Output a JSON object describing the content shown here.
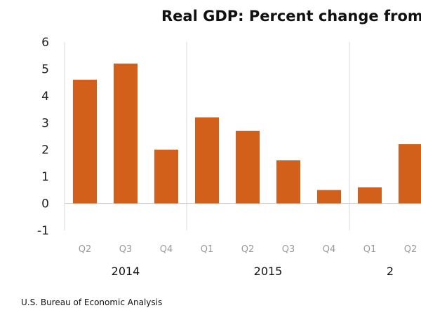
{
  "colors": {
    "bar": "#D2601A",
    "zero_line": "#cfcfcf",
    "divider": "#d9d9d9"
  },
  "source": "U.S. Bureau of Economic Analysis",
  "chart_data": {
    "type": "bar",
    "title": "Real GDP:  Percent change from",
    "xlabel": "",
    "ylabel": "",
    "ylim": [
      -1,
      6
    ],
    "yticks": [
      6,
      5,
      4,
      3,
      2,
      1,
      0,
      -1
    ],
    "grid": false,
    "categories": [
      "Q2",
      "Q3",
      "Q4",
      "Q1",
      "Q2",
      "Q3",
      "Q4",
      "Q1",
      "Q2"
    ],
    "values": [
      4.6,
      5.2,
      2.0,
      3.2,
      2.7,
      1.6,
      0.5,
      0.6,
      2.2
    ],
    "groups": [
      {
        "label": "2014",
        "categories": [
          "Q2",
          "Q3",
          "Q4"
        ]
      },
      {
        "label": "2015",
        "categories": [
          "Q1",
          "Q2",
          "Q3",
          "Q4"
        ]
      },
      {
        "label": "2",
        "categories": [
          "Q1",
          "Q2"
        ]
      }
    ]
  }
}
